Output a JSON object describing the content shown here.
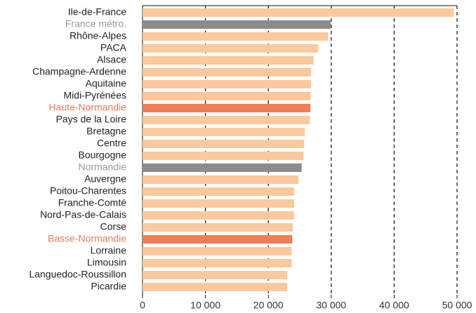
{
  "chart_data": {
    "type": "barh",
    "categories": [
      "Ile-de-France",
      "France métro.",
      "Rhône-Alpes",
      "PACA",
      "Alsace",
      "Champagne-Ardenne",
      "Aquitaine",
      "Midi-Pyrénées",
      "Haute-Normandie",
      "Pays de la Loire",
      "Bretagne",
      "Centre",
      "Bourgogne",
      "Normandie",
      "Auvergne",
      "Poitou-Charentes",
      "Franche-Comté",
      "Nord-Pas-de-Calais",
      "Corse",
      "Basse-Normandie",
      "Lorraine",
      "Limousin",
      "Languedoc-Roussillon",
      "Picardie"
    ],
    "values": [
      49500,
      29900,
      29500,
      27900,
      27200,
      26800,
      26800,
      26700,
      26700,
      26600,
      25800,
      25700,
      25600,
      25300,
      24800,
      24100,
      24100,
      24100,
      23900,
      23800,
      23700,
      23700,
      23000,
      23000
    ],
    "colors": [
      "#fcc89c",
      "#8c8c8c",
      "#fcc89c",
      "#fcc89c",
      "#fcc89c",
      "#fcc89c",
      "#fcc89c",
      "#fcc89c",
      "#f07e55",
      "#fcc89c",
      "#fcc89c",
      "#fcc89c",
      "#fcc89c",
      "#8c8c8c",
      "#fcc89c",
      "#fcc89c",
      "#fcc89c",
      "#fcc89c",
      "#fcc89c",
      "#f07e55",
      "#fcc89c",
      "#fcc89c",
      "#fcc89c",
      "#fcc89c"
    ],
    "label_colors": [
      "#222222",
      "#999999",
      "#222222",
      "#222222",
      "#222222",
      "#222222",
      "#222222",
      "#222222",
      "#e8795a",
      "#222222",
      "#222222",
      "#222222",
      "#222222",
      "#999999",
      "#222222",
      "#222222",
      "#222222",
      "#222222",
      "#222222",
      "#e8795a",
      "#222222",
      "#222222",
      "#222222",
      "#222222"
    ],
    "xlim": [
      0,
      50000
    ],
    "xticks": [
      0,
      {
        "value": 10000,
        "label": "10 000"
      },
      {
        "value": 20000,
        "label": "20 000"
      },
      {
        "value": 30000,
        "label": "30 000"
      },
      {
        "value": 40000,
        "label": "40 000"
      },
      {
        "value": 50000,
        "label": "50 000"
      }
    ],
    "grid": true
  }
}
